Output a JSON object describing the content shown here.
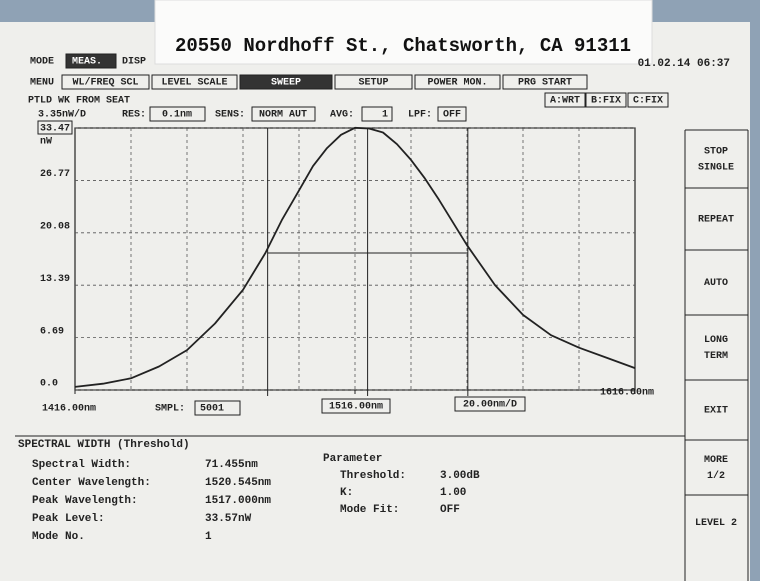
{
  "label": "20550 Nordhoff St., Chatsworth, CA 91311",
  "header": {
    "mode": "MODE",
    "mode_value": "MEAS.",
    "display": "DISP",
    "timestamp": "01.02.14 06:37"
  },
  "menu": {
    "title": "MENU",
    "items": [
      "WL/FREQ SCL",
      "LEVEL SCALE",
      "SWEEP",
      "SETUP",
      "POWER MON.",
      "PRG START"
    ],
    "active": 2
  },
  "trace_title": "PTLD WK FROM SEAT",
  "traces": [
    "A:WRT",
    "B:FIX",
    "C:FIX"
  ],
  "settings": {
    "res_label": "RES:",
    "res": "0.1nm",
    "sens_label": "SENS:",
    "sens": "NORM AUT",
    "avg_label": "AVG:",
    "avg": "1",
    "lpf_label": "LPF:",
    "lpf": "OFF",
    "smpl_label": "SMPL:",
    "smpl": "5001"
  },
  "chart_data": {
    "type": "line",
    "y_division": "3.35nW/D",
    "y_unit": "nW",
    "x_division": "20.00nm/D",
    "x": [
      1416,
      1426,
      1436,
      1446,
      1456,
      1466,
      1476,
      1484,
      1490,
      1496,
      1501,
      1506,
      1511,
      1516,
      1521,
      1526,
      1531,
      1536,
      1541,
      1546,
      1556,
      1566,
      1576,
      1586,
      1596,
      1606,
      1616
    ],
    "values": [
      0.4,
      0.8,
      1.5,
      3.0,
      5.1,
      8.5,
      12.8,
      17.5,
      21.8,
      25.5,
      28.6,
      30.9,
      32.6,
      33.5,
      33.4,
      32.9,
      31.4,
      29.4,
      27.0,
      24.3,
      18.5,
      13.4,
      9.6,
      7.0,
      5.4,
      4.1,
      2.8
    ],
    "color": "#222222",
    "xlim": [
      1416,
      1616
    ],
    "ylim": [
      0,
      33.47
    ],
    "xticks": [
      {
        "value": 1416,
        "label": "1416.00nm"
      },
      {
        "value": 1516,
        "label": "1516.00nm"
      },
      {
        "value": 1616,
        "label": "1616.00nm"
      }
    ],
    "yticks": [
      {
        "value": 0,
        "label": "0.0"
      },
      6.69,
      13.39,
      20.08,
      26.77,
      33.47
    ],
    "grid": true,
    "threshold_lines": {
      "x": [
        1484.8,
        1520.5,
        1556.3
      ],
      "y": 17.5
    }
  },
  "results": {
    "title": "SPECTRAL WIDTH (Threshold)",
    "rows": [
      [
        "Spectral Width:",
        "71.455nm"
      ],
      [
        "Center Wavelength:",
        "1520.545nm"
      ],
      [
        "Peak Wavelength:",
        "1517.000nm"
      ],
      [
        "Peak Level:",
        "33.57nW"
      ],
      [
        "Mode No.",
        "1"
      ]
    ]
  },
  "parameters": {
    "title": "Parameter",
    "rows": [
      [
        "Threshold:",
        "3.00dB"
      ],
      [
        "K:",
        "1.00"
      ],
      [
        "Mode Fit:",
        "OFF"
      ]
    ]
  },
  "softkeys": [
    [
      "STOP",
      "SINGLE"
    ],
    [
      "REPEAT"
    ],
    [
      "AUTO"
    ],
    [
      "LONG",
      "TERM"
    ],
    [
      "EXIT"
    ],
    [
      "MORE",
      "1/2"
    ],
    [
      "LEVEL 2"
    ]
  ]
}
